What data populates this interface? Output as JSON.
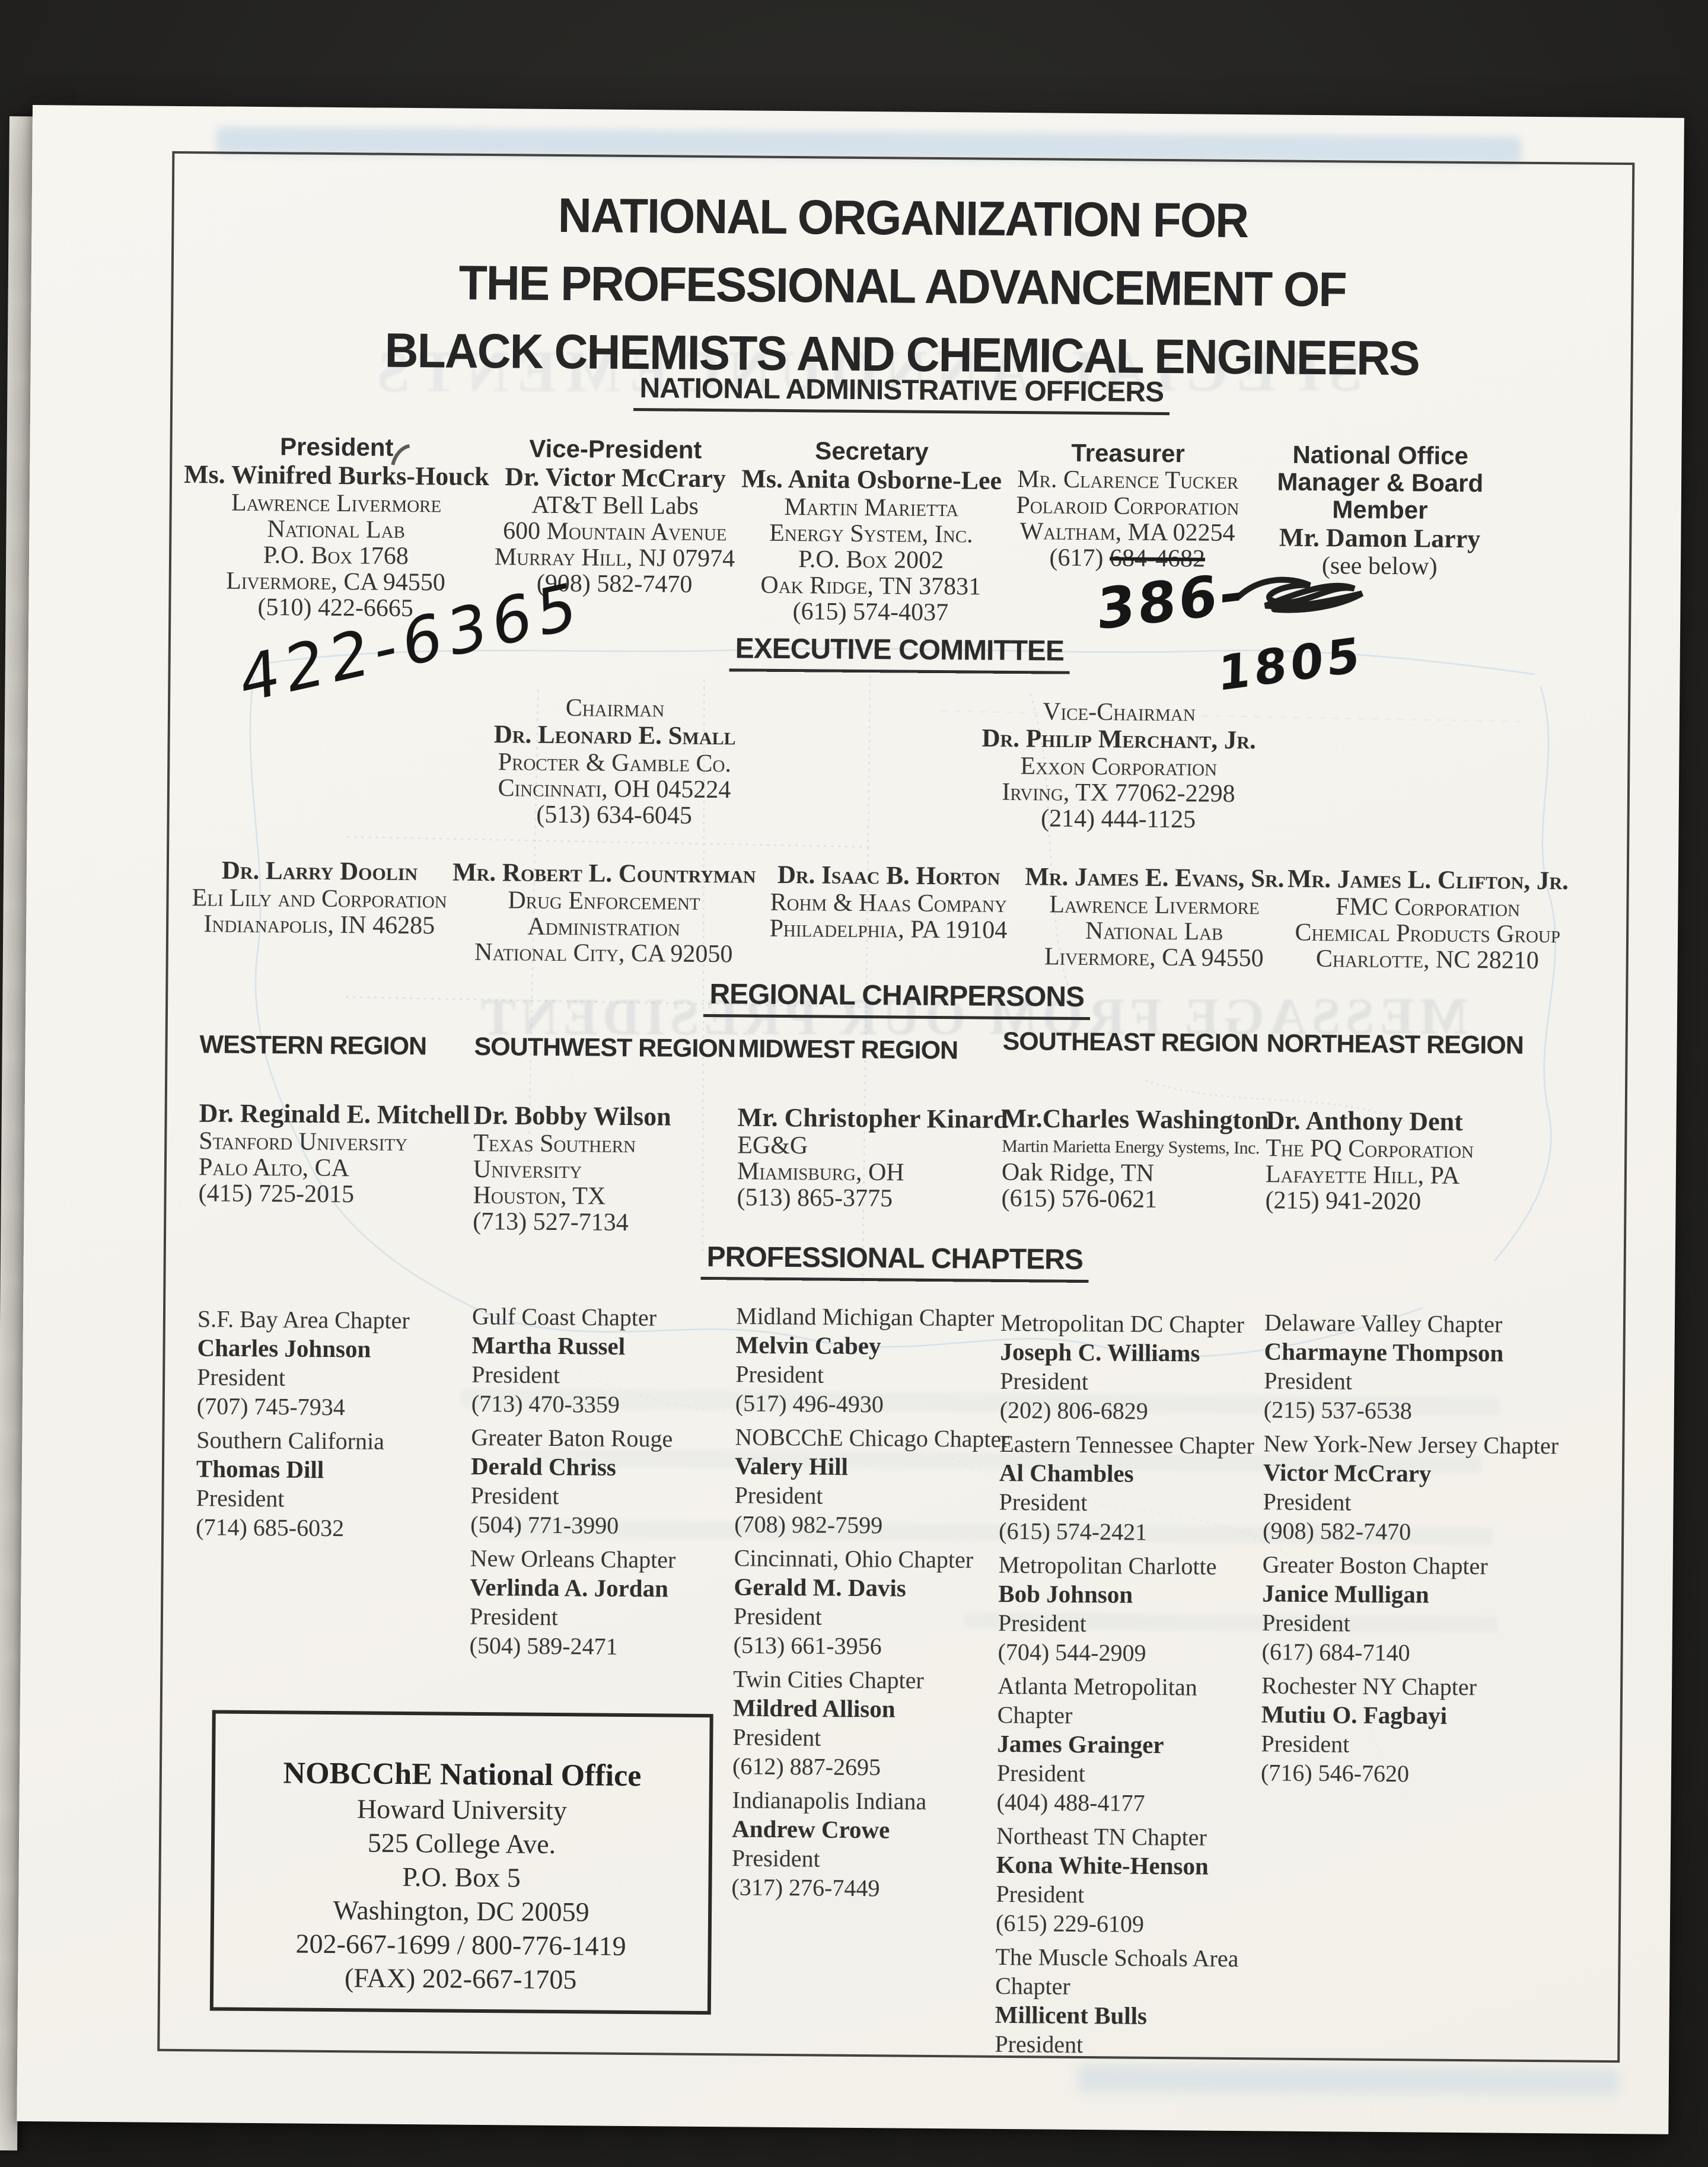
{
  "title_lines": [
    "NATIONAL ORGANIZATION FOR",
    "THE PROFESSIONAL ADVANCEMENT OF",
    "BLACK CHEMISTS AND CHEMICAL ENGINEERS"
  ],
  "officers": {
    "heading": "NATIONAL ADMINISTRATIVE OFFICERS",
    "columns": [
      {
        "lines": [
          {
            "t": "President",
            "s": "role"
          },
          {
            "t": "Ms. Winifred Burks-Houck",
            "s": "name"
          },
          {
            "t": "Lawrence Livermore",
            "s": "sc"
          },
          {
            "t": "National Lab",
            "s": "sc"
          },
          {
            "t": "P.O. Box 1768",
            "s": "sc"
          },
          {
            "t": "Livermore, CA  94550",
            "s": "sc"
          },
          {
            "t": "(510) 422-6665",
            "s": "txt"
          }
        ]
      },
      {
        "lines": [
          {
            "t": "Vice-President",
            "s": "role"
          },
          {
            "t": "Dr. Victor McCrary",
            "s": "name"
          },
          {
            "t": "AT&T Bell Labs",
            "s": "txt"
          },
          {
            "t": "600 Mountain Avenue",
            "s": "sc"
          },
          {
            "t": "Murray Hill, NJ 07974",
            "s": "sc"
          },
          {
            "t": "(908) 582-7470",
            "s": "txt"
          }
        ]
      },
      {
        "lines": [
          {
            "t": "Secretary",
            "s": "role"
          },
          {
            "t": "Ms. Anita Osborne-Lee",
            "s": "name"
          },
          {
            "t": "Martin Marietta",
            "s": "sc"
          },
          {
            "t": "Energy System, Inc.",
            "s": "sc"
          },
          {
            "t": "P.O. Box 2002",
            "s": "sc"
          },
          {
            "t": "Oak Ridge, TN  37831",
            "s": "sc"
          },
          {
            "t": "(615) 574-4037",
            "s": "txt"
          }
        ]
      },
      {
        "lines": [
          {
            "t": "Treasurer",
            "s": "role"
          },
          {
            "t": "Mr. Clarence Tucker",
            "s": "sc"
          },
          {
            "t": "Polaroid Corporation",
            "s": "sc"
          },
          {
            "t": "Waltham, MA 02254",
            "s": "sc"
          },
          {
            "parts": [
              {
                "t": "(617) "
              },
              {
                "t": "684-4682",
                "strike": true
              }
            ],
            "s": "txt"
          }
        ]
      },
      {
        "lines": [
          {
            "t": "National Office",
            "s": "role"
          },
          {
            "t": "Manager & Board",
            "s": "role"
          },
          {
            "t": "Member",
            "s": "role"
          },
          {
            "t": "Mr. Damon Larry",
            "s": "name"
          },
          {
            "t": "(see below)",
            "s": "txt"
          }
        ]
      }
    ]
  },
  "executive": {
    "heading": "EXECUTIVE COMMITTEE",
    "top": [
      {
        "lines": [
          {
            "t": "Chairman",
            "s": "sc"
          },
          {
            "t": "Dr. Leonard E. Small",
            "s": "scb"
          },
          {
            "t": "Procter & Gamble Co.",
            "s": "sc"
          },
          {
            "t": "Cincinnati, OH 045224",
            "s": "sc"
          },
          {
            "t": "(513) 634-6045",
            "s": "txt"
          }
        ]
      },
      {
        "lines": [
          {
            "t": "Vice-Chairman",
            "s": "sc"
          },
          {
            "t": "Dr. Philip Merchant, Jr.",
            "s": "scb"
          },
          {
            "t": "Exxon Corporation",
            "s": "sc"
          },
          {
            "t": "Irving, TX 77062-2298",
            "s": "sc"
          },
          {
            "t": "(214) 444-1125",
            "s": "txt"
          }
        ]
      }
    ],
    "row": [
      {
        "lines": [
          {
            "t": "Dr. Larry Doolin",
            "s": "scb"
          },
          {
            "t": "Eli Lily and Corporation",
            "s": "sc"
          },
          {
            "t": "Indianapolis, IN 46285",
            "s": "sc"
          }
        ]
      },
      {
        "lines": [
          {
            "t": "Mr. Robert L. Countryman",
            "s": "scb"
          },
          {
            "t": "Drug Enforcement",
            "s": "sc"
          },
          {
            "t": "Administration",
            "s": "sc"
          },
          {
            "t": "National City, CA 92050",
            "s": "sc"
          }
        ]
      },
      {
        "lines": [
          {
            "t": "Dr. Isaac B. Horton",
            "s": "scb"
          },
          {
            "t": "Rohm & Haas Company",
            "s": "sc"
          },
          {
            "t": "Philadelphia, PA 19104",
            "s": "sc"
          }
        ]
      },
      {
        "lines": [
          {
            "t": "Mr. James E. Evans, Sr.",
            "s": "scb"
          },
          {
            "t": "Lawrence Livermore",
            "s": "sc"
          },
          {
            "t": "National Lab",
            "s": "sc"
          },
          {
            "t": "Livermore, CA  94550",
            "s": "sc"
          }
        ]
      },
      {
        "lines": [
          {
            "t": "Mr. James L. Clifton, Jr.",
            "s": "scb"
          },
          {
            "t": "FMC Corporation",
            "s": "sc"
          },
          {
            "t": "Chemical Products Group",
            "s": "sc"
          },
          {
            "t": "Charlotte, NC 28210",
            "s": "sc"
          }
        ]
      }
    ]
  },
  "regional": {
    "heading": "REGIONAL CHAIRPERSONS",
    "columns": [
      {
        "header": "WESTERN REGION",
        "lines": [
          {
            "t": "Dr. Reginald E. Mitchell",
            "s": "name"
          },
          {
            "t": "Stanford University",
            "s": "sc"
          },
          {
            "t": "Palo Alto, CA",
            "s": "sc"
          },
          {
            "t": "(415) 725-2015",
            "s": "txt"
          }
        ]
      },
      {
        "header": "SOUTHWEST REGION",
        "lines": [
          {
            "t": "Dr. Bobby Wilson",
            "s": "name"
          },
          {
            "t": "Texas Southern",
            "s": "sc"
          },
          {
            "t": "University",
            "s": "sc"
          },
          {
            "t": "Houston, TX",
            "s": "sc"
          },
          {
            "t": "(713) 527-7134",
            "s": "txt"
          }
        ]
      },
      {
        "header": "MIDWEST REGION",
        "lines": [
          {
            "t": "Mr. Christopher Kinard",
            "s": "name"
          },
          {
            "t": "EG&G",
            "s": "txt"
          },
          {
            "t": "Miamisburg, OH",
            "s": "sc"
          },
          {
            "t": "(513) 865-3775",
            "s": "txt"
          }
        ]
      },
      {
        "header": "SOUTHEAST REGION",
        "lines": [
          {
            "t": "Mr.Charles Washington",
            "s": "name"
          },
          {
            "t": "Martin Marietta Energy Systems, Inc.",
            "s": "small"
          },
          {
            "t": "Oak Ridge, TN",
            "s": "txt"
          },
          {
            "t": "(615) 576-0621",
            "s": "txt"
          }
        ]
      },
      {
        "header": "NORTHEAST REGION",
        "lines": [
          {
            "t": "Dr. Anthony Dent",
            "s": "name"
          },
          {
            "t": "The PQ Corporation",
            "s": "sc"
          },
          {
            "t": "Lafayette Hill, PA",
            "s": "sc"
          },
          {
            "t": "(215) 941-2020",
            "s": "txt"
          }
        ]
      }
    ]
  },
  "chapters": {
    "heading": "PROFESSIONAL CHAPTERS",
    "columns": [
      {
        "blocks": [
          {
            "lines": [
              {
                "t": "S.F. Bay Area Chapter",
                "s": "ch"
              },
              {
                "t": "Charles Johnson",
                "s": "chn"
              },
              {
                "t": "President",
                "s": "ch"
              },
              {
                "t": "(707) 745-7934",
                "s": "ch"
              }
            ]
          },
          {
            "lines": [
              {
                "t": "Southern California",
                "s": "ch"
              },
              {
                "t": "Thomas Dill",
                "s": "chn"
              },
              {
                "t": "President",
                "s": "ch"
              },
              {
                "t": "(714) 685-6032",
                "s": "ch"
              }
            ]
          }
        ]
      },
      {
        "blocks": [
          {
            "lines": [
              {
                "t": "Gulf Coast Chapter",
                "s": "ch"
              },
              {
                "t": "Martha Russel",
                "s": "chn"
              },
              {
                "t": "President",
                "s": "ch"
              },
              {
                "t": "(713) 470-3359",
                "s": "ch"
              }
            ]
          },
          {
            "lines": [
              {
                "t": "Greater Baton Rouge",
                "s": "ch"
              },
              {
                "t": "Derald Chriss",
                "s": "chn"
              },
              {
                "t": "President",
                "s": "ch"
              },
              {
                "t": "(504) 771-3990",
                "s": "ch"
              }
            ]
          },
          {
            "lines": [
              {
                "t": "New Orleans Chapter",
                "s": "ch"
              },
              {
                "t": "Verlinda A. Jordan",
                "s": "chn"
              },
              {
                "t": "President",
                "s": "ch"
              },
              {
                "t": "(504) 589-2471",
                "s": "ch"
              }
            ]
          }
        ]
      },
      {
        "blocks": [
          {
            "lines": [
              {
                "t": "Midland Michigan Chapter",
                "s": "ch"
              },
              {
                "t": "Melvin Cabey",
                "s": "chn"
              },
              {
                "t": "President",
                "s": "ch"
              },
              {
                "t": "(517) 496-4930",
                "s": "ch"
              }
            ]
          },
          {
            "lines": [
              {
                "t": "NOBCChE Chicago Chapter",
                "s": "ch"
              },
              {
                "t": "Valery Hill",
                "s": "chn"
              },
              {
                "t": "President",
                "s": "ch"
              },
              {
                "t": "(708) 982-7599",
                "s": "ch"
              }
            ]
          },
          {
            "lines": [
              {
                "t": "Cincinnati, Ohio Chapter",
                "s": "ch"
              },
              {
                "t": "Gerald M. Davis",
                "s": "chn"
              },
              {
                "t": "President",
                "s": "ch"
              },
              {
                "t": "(513) 661-3956",
                "s": "ch"
              }
            ]
          },
          {
            "lines": [
              {
                "t": "Twin Cities Chapter",
                "s": "ch"
              },
              {
                "t": "Mildred Allison",
                "s": "chn"
              },
              {
                "t": "President",
                "s": "ch"
              },
              {
                "t": "(612) 887-2695",
                "s": "ch"
              }
            ]
          },
          {
            "lines": [
              {
                "t": "Indianapolis Indiana",
                "s": "ch"
              },
              {
                "t": "Andrew Crowe",
                "s": "chn"
              },
              {
                "t": "President",
                "s": "ch"
              },
              {
                "t": "(317) 276-7449",
                "s": "ch"
              }
            ]
          }
        ]
      },
      {
        "blocks": [
          {
            "lines": [
              {
                "t": "Metropolitan DC Chapter",
                "s": "ch"
              },
              {
                "t": "Joseph C. Williams",
                "s": "chn"
              },
              {
                "t": "President",
                "s": "ch"
              },
              {
                "t": "(202) 806-6829",
                "s": "ch"
              }
            ]
          },
          {
            "lines": [
              {
                "t": "Eastern Tennessee Chapter",
                "s": "ch"
              },
              {
                "t": "Al Chambles",
                "s": "chn"
              },
              {
                "t": "President",
                "s": "ch"
              },
              {
                "t": "(615) 574-2421",
                "s": "ch"
              }
            ]
          },
          {
            "lines": [
              {
                "t": "Metropolitan Charlotte",
                "s": "ch"
              },
              {
                "t": "Bob Johnson",
                "s": "chn"
              },
              {
                "t": "President",
                "s": "ch"
              },
              {
                "t": "(704) 544-2909",
                "s": "ch"
              }
            ]
          },
          {
            "lines": [
              {
                "t": "Atlanta Metropolitan",
                "s": "ch"
              },
              {
                "t": "Chapter",
                "s": "ch"
              },
              {
                "t": "James Grainger",
                "s": "chn"
              },
              {
                "t": "President",
                "s": "ch"
              },
              {
                "t": "(404) 488-4177",
                "s": "ch"
              }
            ]
          },
          {
            "lines": [
              {
                "t": "Northeast TN Chapter",
                "s": "ch"
              },
              {
                "t": "Kona White-Henson",
                "s": "chn"
              },
              {
                "t": "President",
                "s": "ch"
              },
              {
                "t": "(615) 229-6109",
                "s": "ch"
              }
            ]
          },
          {
            "lines": [
              {
                "t": "The Muscle Schoals Area",
                "s": "ch"
              },
              {
                "t": "Chapter",
                "s": "ch"
              },
              {
                "t": "Millicent Bulls",
                "s": "chn"
              },
              {
                "t": "President",
                "s": "ch"
              }
            ]
          }
        ]
      },
      {
        "blocks": [
          {
            "lines": [
              {
                "t": "Delaware Valley Chapter",
                "s": "ch"
              },
              {
                "t": "Charmayne Thompson",
                "s": "chn"
              },
              {
                "t": "President",
                "s": "ch"
              },
              {
                "t": "(215) 537-6538",
                "s": "ch"
              }
            ]
          },
          {
            "lines": [
              {
                "t": "New York-New Jersey Chapter",
                "s": "ch"
              },
              {
                "t": "Victor McCrary",
                "s": "chn"
              },
              {
                "t": "President",
                "s": "ch"
              },
              {
                "t": "(908) 582-7470",
                "s": "ch"
              }
            ]
          },
          {
            "lines": [
              {
                "t": "Greater Boston Chapter",
                "s": "ch"
              },
              {
                "t": "Janice Mulligan",
                "s": "chn"
              },
              {
                "t": "President",
                "s": "ch"
              },
              {
                "t": "(617) 684-7140",
                "s": "ch"
              }
            ]
          },
          {
            "lines": [
              {
                "t": "Rochester NY Chapter",
                "s": "ch"
              },
              {
                "t": "Mutiu O. Fagbayi",
                "s": "chn"
              },
              {
                "t": "President",
                "s": "ch"
              },
              {
                "t": "(716) 546-7620",
                "s": "ch"
              }
            ]
          }
        ]
      }
    ]
  },
  "office_box": {
    "lines": [
      {
        "t": "NOBCChE National Office",
        "s": "obt"
      },
      {
        "t": "Howard University",
        "s": "obl"
      },
      {
        "t": "525 College Ave.",
        "s": "obl"
      },
      {
        "t": "P.O. Box 5",
        "s": "obl"
      },
      {
        "t": "Washington, DC  20059",
        "s": "obl"
      },
      {
        "t": "202-667-1699 / 800-776-1419",
        "s": "obl"
      },
      {
        "t": "(FAX) 202-667-1705",
        "s": "obl"
      }
    ]
  },
  "annotations": {
    "hw_phone": "422-6365",
    "hw_treasurer_prefix": "386-",
    "hw_treasurer_line2": "1805"
  },
  "ghosts": {
    "mirrored_text_1": "SPECIAL ANNOUNCEMENTS",
    "mirrored_text_2": "MESSAGE FROM OUR PRESIDENT"
  }
}
